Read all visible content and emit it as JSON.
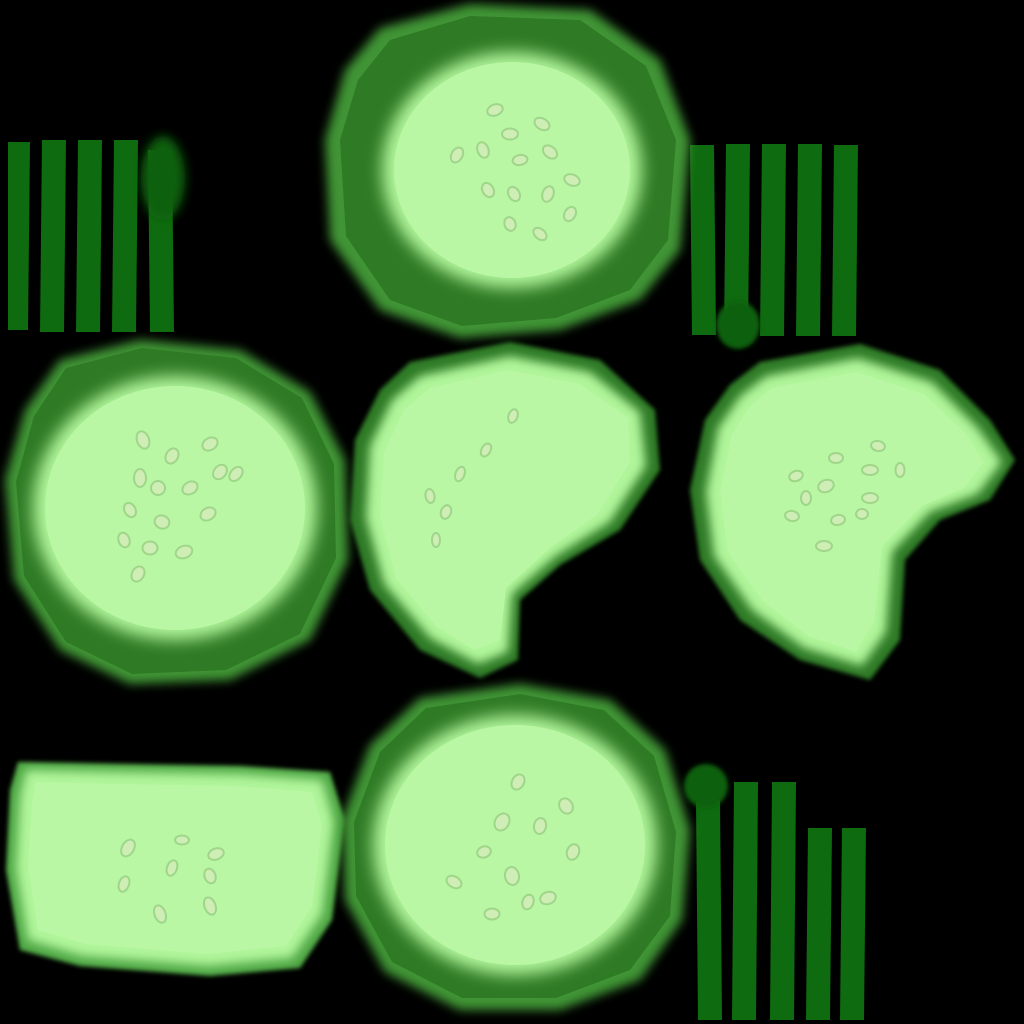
{
  "palette": {
    "background": "#000000",
    "rind_dark": "#2f7a25",
    "rind_mid": "#3f9434",
    "rind_glow": "#4fa845",
    "flesh": "#b0f59a",
    "flesh_inner": "#b9f7a4",
    "seed_fill": "#cfeeb5",
    "seed_stroke": "#9fd68a",
    "stripe": "#0f6b0f",
    "stripe_blob": "#0d610d"
  },
  "texture": {
    "kind": "cucumber texture atlas",
    "pieces": [
      "stripes-top-left",
      "slice-top-center",
      "stripes-top-right",
      "slice-middle-left",
      "slice-middle-center-bitten",
      "slice-middle-right-bitten",
      "chunk-bottom-left",
      "slice-bottom-center",
      "stripes-bottom-right"
    ]
  }
}
